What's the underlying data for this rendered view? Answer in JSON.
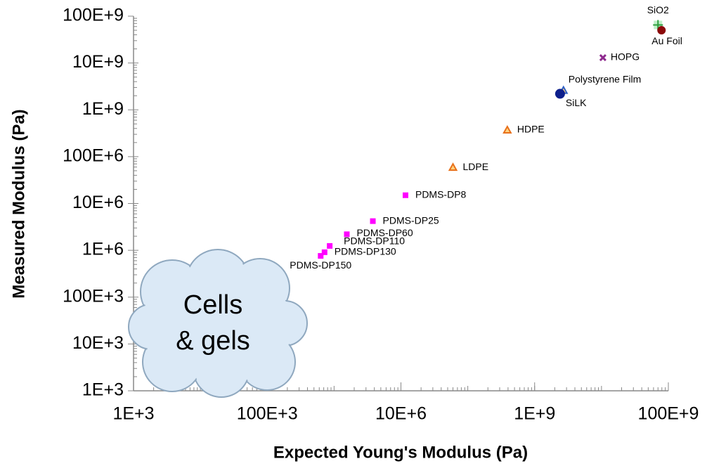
{
  "chart_data": {
    "type": "scatter",
    "x_label": "Expected Young's Modulus (Pa)",
    "y_label": "Measured Modulus (Pa)",
    "log_x": true,
    "log_y": true,
    "xlim": [
      1000,
      100000000000
    ],
    "ylim": [
      1000,
      100000000000
    ],
    "xticks": [
      {
        "value": 1000,
        "label": "1E+3"
      },
      {
        "value": 100000,
        "label": "100E+3"
      },
      {
        "value": 10000000,
        "label": "10E+6"
      },
      {
        "value": 1000000000,
        "label": "1E+9"
      },
      {
        "value": 100000000000,
        "label": "100E+9"
      }
    ],
    "yticks": [
      {
        "value": 1000,
        "label": "1E+3"
      },
      {
        "value": 10000,
        "label": "10E+3"
      },
      {
        "value": 100000,
        "label": "100E+3"
      },
      {
        "value": 1000000,
        "label": "1E+6"
      },
      {
        "value": 10000000,
        "label": "10E+6"
      },
      {
        "value": 100000000,
        "label": "100E+6"
      },
      {
        "value": 1000000000,
        "label": "1E+9"
      },
      {
        "value": 10000000000,
        "label": "10E+9"
      },
      {
        "value": 100000000000,
        "label": "100E+9"
      }
    ],
    "annotation_lines": [
      "Cells",
      "& gels"
    ],
    "series": [
      {
        "name": "SiO2",
        "color": "#2e9e3e",
        "marker": "plus",
        "x": [
          70000000000
        ],
        "values": [
          65000000000
        ]
      },
      {
        "name": "Au Foil",
        "color": "#8b0a0a",
        "marker": "circle",
        "x": [
          79000000000
        ],
        "values": [
          50000000000
        ]
      },
      {
        "name": "HOPG",
        "color": "#8e2a8e",
        "marker": "x",
        "x": [
          10500000000
        ],
        "values": [
          13000000000
        ]
      },
      {
        "name": "Polystyrene Film",
        "color": "#2f5fc4",
        "marker": "triangle",
        "x": [
          2700000000
        ],
        "values": [
          2600000000
        ]
      },
      {
        "name": "SiLK",
        "color": "#0d1f8c",
        "marker": "circle",
        "x": [
          2400000000
        ],
        "values": [
          2200000000
        ]
      },
      {
        "name": "HDPE",
        "color": "#e8701a",
        "marker": "triangle",
        "x": [
          390000000
        ],
        "values": [
          370000000
        ]
      },
      {
        "name": "LDPE",
        "color": "#e8701a",
        "marker": "triangle",
        "x": [
          60000000
        ],
        "values": [
          59000000
        ]
      },
      {
        "name": "PDMS-DP8",
        "color": "#ff00ff",
        "marker": "square",
        "x": [
          11700000
        ],
        "values": [
          15000000
        ]
      },
      {
        "name": "PDMS-DP25",
        "color": "#ff00ff",
        "marker": "square",
        "x": [
          3800000
        ],
        "values": [
          4200000
        ]
      },
      {
        "name": "PDMS-DP60",
        "color": "#ff00ff",
        "marker": "square",
        "x": [
          1550000
        ],
        "values": [
          2200000
        ]
      },
      {
        "name": "PDMS-DP110",
        "color": "#ff00ff",
        "marker": "square",
        "x": [
          860000
        ],
        "values": [
          1240000
        ]
      },
      {
        "name": "PDMS-DP130",
        "color": "#ff00ff",
        "marker": "square",
        "x": [
          720000
        ],
        "values": [
          910000
        ]
      },
      {
        "name": "PDMS-DP150",
        "color": "#ff00ff",
        "marker": "square",
        "x": [
          630000
        ],
        "values": [
          760000
        ]
      }
    ]
  }
}
